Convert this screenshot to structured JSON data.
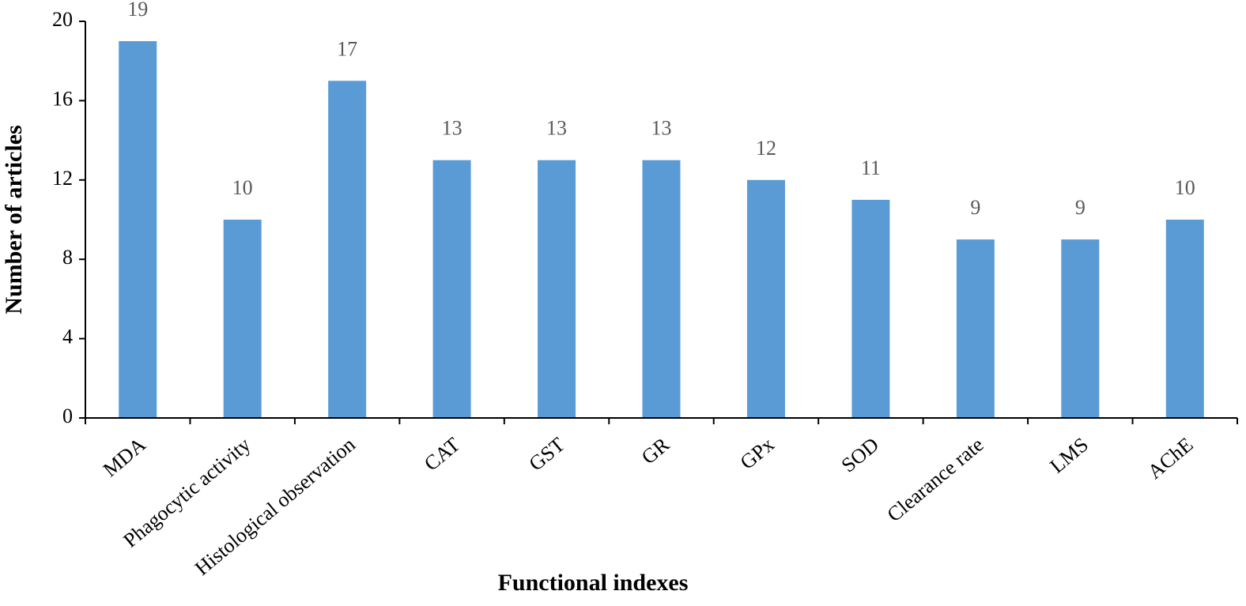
{
  "chart_data": {
    "type": "bar",
    "x_label": "Functional indexes",
    "y_label": "Number of articles",
    "categories": [
      "MDA",
      "Phagocytic activity",
      "Histological observation",
      "CAT",
      "GST",
      "GR",
      "GPx",
      "SOD",
      "Clearance rate",
      "LMS",
      "AChE"
    ],
    "values": [
      19,
      10,
      17,
      13,
      13,
      13,
      12,
      11,
      9,
      9,
      10
    ],
    "color": "#5b9bd5",
    "ylim": [
      0,
      20
    ],
    "yticks": [
      0,
      4,
      8,
      12,
      16,
      20
    ],
    "grid": false
  }
}
